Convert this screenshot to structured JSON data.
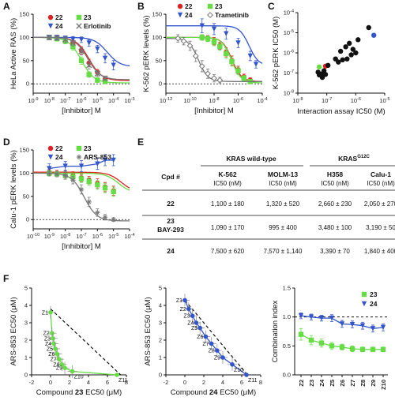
{
  "colors": {
    "c22": "#e02020",
    "c23": "#66dd44",
    "c24": "#3355cc",
    "cother": "#777777",
    "cblack": "#111111"
  },
  "chart_data": [
    {
      "id": "A",
      "type": "line",
      "ylabel": "HeLa Active RAS (%)",
      "xlabel": "[Inhibitor] M",
      "xscale": "log",
      "xlim": [
        1e-09,
        0.001
      ],
      "ylim": [
        -20,
        150
      ],
      "yticks": [
        0,
        50,
        100,
        150
      ],
      "xticks": [
        1e-09,
        1e-08,
        1e-07,
        1e-06,
        1e-05,
        0.0001,
        0.001
      ],
      "xticklabels": [
        "10-9",
        "10-8",
        "10-7",
        "10-6",
        "10-5",
        "10-4",
        "10-3"
      ],
      "refline": 0,
      "series": [
        {
          "name": "22",
          "color": "c22",
          "marker": "circle",
          "x": [
            1e-08,
            3e-08,
            1e-07,
            3e-07,
            1e-06,
            3e-06,
            1e-05,
            3e-05
          ],
          "y": [
            100,
            98,
            95,
            88,
            72,
            45,
            25,
            10
          ],
          "err": [
            5,
            5,
            6,
            6,
            8,
            8,
            6,
            5
          ],
          "ic50": 3e-06
        },
        {
          "name": "23",
          "color": "c23",
          "marker": "square",
          "x": [
            1e-08,
            3e-08,
            1e-07,
            3e-07,
            1e-06,
            3e-06,
            1e-05,
            3e-05
          ],
          "y": [
            100,
            97,
            92,
            80,
            50,
            20,
            8,
            5
          ],
          "err": [
            5,
            5,
            6,
            7,
            8,
            6,
            5,
            5
          ],
          "ic50": 1e-06
        },
        {
          "name": "24",
          "color": "c24",
          "marker": "triangle",
          "x": [
            1e-08,
            3e-08,
            1e-07,
            3e-07,
            1e-06,
            3e-06,
            1e-05,
            3e-05,
            0.0001
          ],
          "y": [
            100,
            100,
            98,
            96,
            95,
            88,
            75,
            55,
            40
          ],
          "err": [
            5,
            5,
            5,
            6,
            6,
            7,
            8,
            10,
            10
          ],
          "ic50": 4e-05
        },
        {
          "name": "Erlotinib",
          "color": "cother",
          "marker": "x",
          "x": [
            1e-08,
            3e-08,
            1e-07,
            3e-07,
            1e-06,
            3e-06,
            1e-05,
            3e-05
          ],
          "y": [
            100,
            99,
            95,
            88,
            70,
            40,
            22,
            12
          ],
          "err": [
            5,
            5,
            6,
            6,
            8,
            8,
            6,
            5
          ],
          "ic50": 2.5e-06
        }
      ]
    },
    {
      "id": "B",
      "type": "line",
      "ylabel": "K-562 pERK levels (%)",
      "xlabel": "[Inhibitor] M",
      "xscale": "log",
      "xlim": [
        1e-12,
        0.0001
      ],
      "ylim": [
        -20,
        150
      ],
      "yticks": [
        0,
        50,
        100,
        150
      ],
      "xticks": [
        1e-12,
        1e-10,
        1e-08,
        1e-06,
        0.0001
      ],
      "xticklabels": [
        "10-12",
        "10-10",
        "10-8",
        "10-6",
        "10-4"
      ],
      "refline": 0,
      "series": [
        {
          "name": "22",
          "color": "c22",
          "marker": "circle",
          "x": [
            1e-09,
            3e-09,
            1e-08,
            3e-08,
            1e-07,
            3e-07,
            1e-06,
            3e-06,
            1e-05
          ],
          "y": [
            100,
            98,
            92,
            82,
            68,
            50,
            30,
            15,
            8
          ],
          "err": [
            6,
            6,
            8,
            8,
            10,
            10,
            8,
            6,
            5
          ],
          "ic50": 3e-07
        },
        {
          "name": "23",
          "color": "c23",
          "marker": "square",
          "x": [
            1e-09,
            3e-09,
            1e-08,
            3e-08,
            1e-07,
            3e-07,
            1e-06,
            3e-06,
            1e-05
          ],
          "y": [
            100,
            97,
            90,
            80,
            65,
            48,
            28,
            12,
            5
          ],
          "err": [
            6,
            6,
            8,
            8,
            10,
            10,
            8,
            6,
            5
          ],
          "ic50": 2.8e-07
        },
        {
          "name": "24",
          "color": "c24",
          "marker": "triangle",
          "x": [
            1e-09,
            1e-08,
            1e-07,
            1e-06,
            1e-05,
            3e-05
          ],
          "y": [
            125,
            118,
            108,
            88,
            60,
            42
          ],
          "err": [
            15,
            12,
            12,
            10,
            10,
            8
          ],
          "ic50": 8e-06
        },
        {
          "name": "Trametinib",
          "color": "cother",
          "marker": "diamond",
          "x": [
            1e-11,
            3e-11,
            1e-10,
            3e-10,
            1e-09,
            3e-09,
            1e-08,
            3e-08
          ],
          "y": [
            98,
            92,
            82,
            60,
            38,
            22,
            12,
            8
          ],
          "err": [
            8,
            8,
            10,
            12,
            12,
            10,
            8,
            6
          ],
          "ic50": 5e-10
        }
      ]
    },
    {
      "id": "C",
      "type": "scatter",
      "ylabel": "K-562 pERK IC50 (M)",
      "xlabel": "Interaction assay IC50 (M)",
      "xscale": "log",
      "yscale": "log",
      "xlim": [
        1e-08,
        1e-05
      ],
      "ylim": [
        1e-08,
        0.0001
      ],
      "xticks": [
        1e-08,
        1e-07,
        1e-06,
        1e-05
      ],
      "xticklabels": [
        "10-8",
        "10-7",
        "10-6",
        "10-5"
      ],
      "yticks": [
        1e-08,
        1e-07,
        1e-06,
        1e-05,
        0.0001
      ],
      "yticklabels": [
        "10-8",
        "10-7",
        "10-6",
        "10-5",
        "10-4"
      ],
      "points": [
        {
          "x": 5.5e-08,
          "y": 2e-07,
          "color": "c23"
        },
        {
          "x": 9e-08,
          "y": 2.2e-07,
          "color": "c22"
        },
        {
          "x": 4.2e-06,
          "y": 7.5e-06,
          "color": "c24"
        },
        {
          "x": 5e-08,
          "y": 1.1e-07,
          "color": "cblack"
        },
        {
          "x": 6.5e-08,
          "y": 9e-08,
          "color": "cblack"
        },
        {
          "x": 8e-08,
          "y": 1.3e-07,
          "color": "cblack"
        },
        {
          "x": 5.5e-08,
          "y": 8e-08,
          "color": "cblack"
        },
        {
          "x": 7e-08,
          "y": 6e-08,
          "color": "cblack"
        },
        {
          "x": 9e-08,
          "y": 8.5e-08,
          "color": "cblack"
        },
        {
          "x": 1.1e-07,
          "y": 2.4e-07,
          "color": "cblack"
        },
        {
          "x": 2e-07,
          "y": 5e-07,
          "color": "cblack"
        },
        {
          "x": 2.5e-07,
          "y": 3.5e-07,
          "color": "cblack"
        },
        {
          "x": 3e-07,
          "y": 1.2e-06,
          "color": "cblack"
        },
        {
          "x": 3.5e-07,
          "y": 4.5e-07,
          "color": "cblack"
        },
        {
          "x": 4.5e-07,
          "y": 2e-06,
          "color": "cblack"
        },
        {
          "x": 5e-07,
          "y": 5e-07,
          "color": "cblack"
        },
        {
          "x": 6e-07,
          "y": 3e-06,
          "color": "cblack"
        },
        {
          "x": 7e-07,
          "y": 8e-07,
          "color": "cblack"
        },
        {
          "x": 8e-07,
          "y": 1.5e-06,
          "color": "cblack"
        },
        {
          "x": 1e-06,
          "y": 1e-06,
          "color": "cblack"
        },
        {
          "x": 1.2e-06,
          "y": 4.5e-06,
          "color": "cblack"
        },
        {
          "x": 2.8e-06,
          "y": 1.8e-05,
          "color": "cblack"
        }
      ]
    },
    {
      "id": "D",
      "type": "line",
      "ylabel": "Calu-1 pERK levels (%)",
      "xlabel": "[Inhibitor] M",
      "xscale": "log",
      "xlim": [
        1e-10,
        0.0001
      ],
      "ylim": [
        -20,
        150
      ],
      "yticks": [
        0,
        50,
        100,
        150
      ],
      "xticks": [
        1e-10,
        1e-09,
        1e-08,
        1e-07,
        1e-06,
        1e-05,
        0.0001
      ],
      "xticklabels": [
        "10-10",
        "10-9",
        "10-8",
        "10-7",
        "10-6",
        "10-5",
        "10-4"
      ],
      "refline": 0,
      "series": [
        {
          "name": "22",
          "color": "c22",
          "marker": "circle",
          "x": [
            1e-09,
            3e-09,
            1e-08,
            3e-08,
            1e-07,
            3e-07,
            1e-06,
            3e-06,
            1e-05
          ],
          "y": [
            102,
            100,
            98,
            95,
            90,
            85,
            78,
            70,
            62
          ],
          "err": [
            6,
            6,
            8,
            8,
            8,
            8,
            10,
            10,
            10
          ],
          "ic50": 3e-05
        },
        {
          "name": "23",
          "color": "c23",
          "marker": "square",
          "x": [
            1e-09,
            3e-09,
            1e-08,
            3e-08,
            1e-07,
            3e-07,
            1e-06,
            3e-06,
            1e-05
          ],
          "y": [
            100,
            98,
            95,
            92,
            88,
            82,
            75,
            68,
            60
          ],
          "err": [
            6,
            6,
            8,
            8,
            8,
            8,
            10,
            10,
            10
          ],
          "ic50": 2e-05
        },
        {
          "name": "24",
          "color": "c24",
          "marker": "triangle",
          "x": [
            1e-09,
            1e-08,
            1e-07,
            1e-06,
            3e-06,
            1e-05
          ],
          "y": [
            110,
            115,
            115,
            120,
            128,
            128
          ],
          "err": [
            10,
            10,
            12,
            12,
            12,
            12
          ],
          "ic50": null
        },
        {
          "name": "ARS-853",
          "color": "cother",
          "marker": "star",
          "x": [
            1e-09,
            3e-09,
            1e-08,
            3e-08,
            1e-07,
            3e-07,
            1e-06,
            3e-06,
            1e-05
          ],
          "y": [
            100,
            98,
            95,
            85,
            65,
            38,
            15,
            5,
            0
          ],
          "err": [
            6,
            6,
            8,
            8,
            10,
            10,
            8,
            6,
            4
          ],
          "ic50": 1.5e-07
        }
      ]
    },
    {
      "id": "F1",
      "type": "line",
      "ylabel": "ARS-853 EC50 (μM)",
      "xlabel": "EC50 (μM)",
      "xlabel_prefix": "Compound",
      "xlabel_bold": "23",
      "xlim": [
        -2,
        8
      ],
      "ylim": [
        0,
        5
      ],
      "xticks": [
        -2,
        0,
        2,
        4,
        6,
        8
      ],
      "yticks": [
        0,
        1,
        2,
        3,
        4,
        5
      ],
      "points": [
        {
          "l": "Z1",
          "x": 0,
          "y": 3.6
        },
        {
          "l": "Z2",
          "x": 0.15,
          "y": 2.4
        },
        {
          "l": "Z3",
          "x": 0.25,
          "y": 2.1
        },
        {
          "l": "Z4",
          "x": 0.35,
          "y": 1.8
        },
        {
          "l": "Z5",
          "x": 0.5,
          "y": 1.5
        },
        {
          "l": "Z6",
          "x": 0.7,
          "y": 1.2
        },
        {
          "l": "Z7",
          "x": 0.9,
          "y": 0.9
        },
        {
          "l": "Z8",
          "x": 1.2,
          "y": 0.6
        },
        {
          "l": "Z9",
          "x": 1.5,
          "y": 0.4
        },
        {
          "l": "Z10",
          "x": 2.3,
          "y": 0.2
        },
        {
          "l": "Z11",
          "x": 7,
          "y": 0
        }
      ],
      "additivity": {
        "x1": 0,
        "y1": 3.8,
        "x2": 7.4,
        "y2": 0
      },
      "color": "c23"
    },
    {
      "id": "F2",
      "type": "line",
      "ylabel": "ARS-853 EC50 (μM)",
      "xlabel": "EC50 (μM)",
      "xlabel_prefix": "Compound",
      "xlabel_bold": "24",
      "xlim": [
        -2,
        8
      ],
      "ylim": [
        0,
        5
      ],
      "xticks": [
        -2,
        0,
        2,
        4,
        6,
        8
      ],
      "yticks": [
        0,
        1,
        2,
        3,
        4,
        5
      ],
      "points": [
        {
          "l": "Z1",
          "x": 0,
          "y": 4.3
        },
        {
          "l": "Z2",
          "x": 0.4,
          "y": 3.8
        },
        {
          "l": "Z3",
          "x": 0.8,
          "y": 3.4
        },
        {
          "l": "Z4",
          "x": 1.2,
          "y": 3.0
        },
        {
          "l": "Z5",
          "x": 1.6,
          "y": 2.7
        },
        {
          "l": "Z6",
          "x": 2.2,
          "y": 2.2
        },
        {
          "l": "Z7",
          "x": 2.8,
          "y": 1.8
        },
        {
          "l": "Z8",
          "x": 3.4,
          "y": 1.4
        },
        {
          "l": "Z9",
          "x": 4.0,
          "y": 1.0
        },
        {
          "l": "Z10",
          "x": 5.0,
          "y": 0.6
        },
        {
          "l": "Z11",
          "x": 6.5,
          "y": 0
        }
      ],
      "additivity": {
        "x1": 0,
        "y1": 4.3,
        "x2": 6.6,
        "y2": 0
      },
      "color": "c24"
    },
    {
      "id": "F3",
      "type": "line",
      "ylabel": "Combination index",
      "xlim": [
        0,
        10
      ],
      "ylim": [
        0,
        1.5
      ],
      "yticks": [
        0,
        0.5,
        1.0,
        1.5
      ],
      "yticklabels": [
        "0.0",
        "0.5",
        "1.0",
        "1.5"
      ],
      "categories": [
        "Z2",
        "Z3",
        "Z4",
        "Z5",
        "Z6",
        "Z7",
        "Z8",
        "Z9",
        "Z10"
      ],
      "series": [
        {
          "name": "23",
          "color": "c23",
          "marker": "square",
          "values": [
            0.7,
            0.6,
            0.55,
            0.5,
            0.48,
            0.45,
            0.44,
            0.44,
            0.44
          ],
          "err": [
            0.1,
            0.08,
            0.07,
            0.06,
            0.05,
            0.05,
            0.04,
            0.04,
            0.04
          ]
        },
        {
          "name": "24",
          "color": "c24",
          "marker": "triangle",
          "values": [
            1.02,
            1.0,
            0.98,
            0.98,
            0.88,
            0.87,
            0.85,
            0.8,
            0.82
          ],
          "err": [
            0.05,
            0.05,
            0.05,
            0.06,
            0.06,
            0.06,
            0.06,
            0.06,
            0.06
          ]
        }
      ],
      "refline": 1.0
    }
  ],
  "panels": {
    "A": "A",
    "B": "B",
    "C": "C",
    "D": "D",
    "E": "E",
    "F": "F"
  },
  "table": {
    "h_wt": "KRAS wild-type",
    "h_g12c": "KRAS",
    "h_g12c_sup": "G12C",
    "col_cpd": "Cpd #",
    "cols": [
      "K-562",
      "MOLM-13",
      "H358",
      "Calu-1"
    ],
    "unit": "IC50 (nM)",
    "rows": [
      {
        "cpd": "22",
        "cpd2": "",
        "vals": [
          "1,100 ± 180",
          "1,320 ± 520",
          "2,660 ± 230",
          "2,050 ± 270"
        ]
      },
      {
        "cpd": "23",
        "cpd2": "BAY-293",
        "vals": [
          "1,090 ± 170",
          "995 ± 400",
          "3,480 ± 100",
          "3,190 ± 50"
        ]
      },
      {
        "cpd": "24",
        "cpd2": "",
        "vals": [
          "7,500 ± 620",
          "7,570 ± 1,140",
          "3,390 ± 70",
          "1,840 ± 400"
        ]
      }
    ]
  }
}
